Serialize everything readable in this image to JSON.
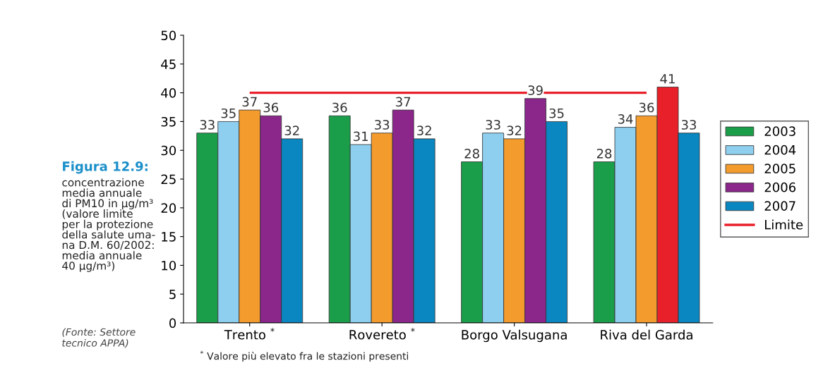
{
  "chart_data": {
    "type": "bar",
    "title": "Figura 12.9:",
    "subtitle": "concentrazione\nmedia annuale\ndi PM10 in µg/m³\n(valore limite\nper la protezione\ndella salute uma-\nna D.M. 60/2002:\nmedia annuale\n40 µg/m³)",
    "annotations": [
      "(Fonte: Settore\ntecnico APPA)",
      "$^{*}$ Valore più elevato fra le stazioni presenti"
    ],
    "categories": [
      "Trento $^{*}$",
      "Rovereto $^{*}$",
      "Borgo Valsugana",
      "Riva del Garda"
    ],
    "series": [
      {
        "name": "2003",
        "color": "#1a9e4a",
        "values": [
          33,
          36,
          28,
          28
        ]
      },
      {
        "name": "2004",
        "color": "#8ecfef",
        "values": [
          35,
          31,
          33,
          34
        ]
      },
      {
        "name": "2005",
        "color": "#f39b2d",
        "values": [
          37,
          33,
          32,
          36
        ]
      },
      {
        "name": "2006",
        "color": "#8b268b",
        "colors": [
          "#8b268b",
          "#8b268b",
          "#8b268b",
          "#e8202a"
        ],
        "values": [
          36,
          37,
          39,
          41
        ]
      },
      {
        "name": "2007",
        "color": "#0a86c0",
        "values": [
          32,
          32,
          35,
          33
        ]
      }
    ],
    "ref_lines": [
      {
        "axis": "y",
        "value": 40,
        "label": "Limite",
        "color": "#e8202a",
        "line_style": "solid"
      }
    ],
    "ylim": [
      0,
      50
    ],
    "yticks": [
      0,
      5,
      10,
      15,
      20,
      25,
      30,
      35,
      40,
      45,
      50
    ],
    "data_labels": true,
    "grid": false,
    "legend": "right"
  }
}
